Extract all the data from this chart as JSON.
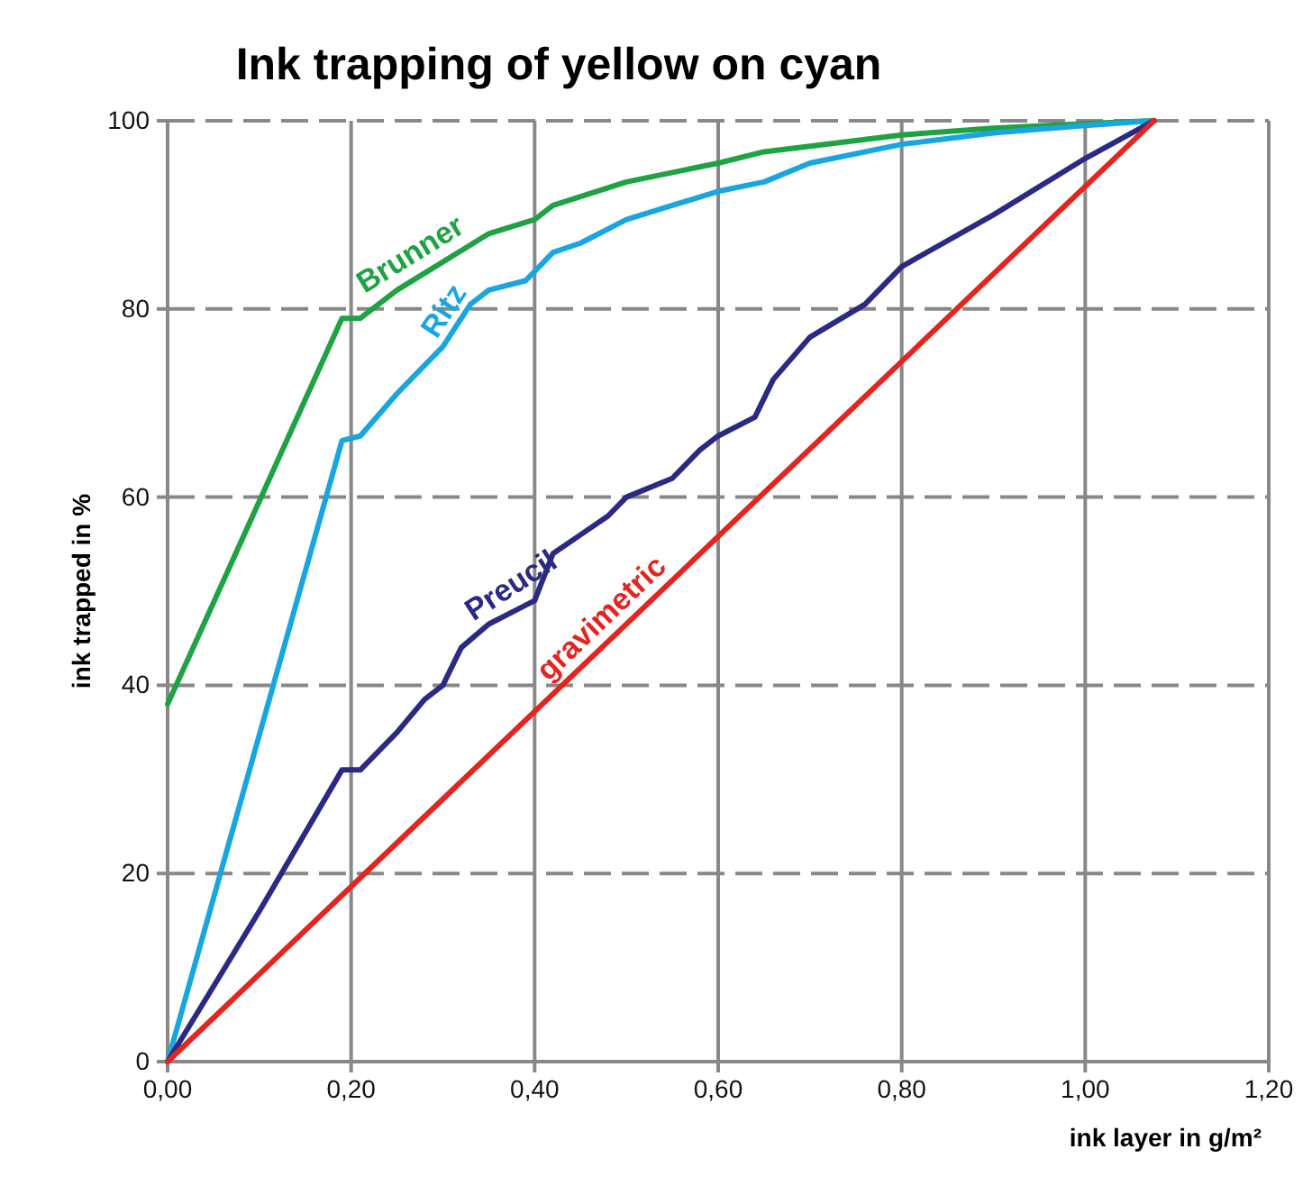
{
  "chart_data": {
    "type": "line",
    "title": "Ink trapping of yellow on cyan",
    "xlabel": "ink layer in g/m²",
    "ylabel": "ink trapped in %",
    "xlim": [
      0,
      1.2
    ],
    "ylim": [
      0,
      100
    ],
    "xticks": [
      {
        "value": 0,
        "label": "0,00"
      },
      {
        "value": 0.2,
        "label": "0,20"
      },
      {
        "value": 0.4,
        "label": "0,40"
      },
      {
        "value": 0.6,
        "label": "0,60"
      },
      {
        "value": 0.8,
        "label": "0,80"
      },
      {
        "value": 1.0,
        "label": "1,00"
      },
      {
        "value": 1.2,
        "label": "1,20"
      }
    ],
    "yticks": [
      0,
      20,
      40,
      60,
      80,
      100
    ],
    "grid": true,
    "legend": false,
    "marker": "none",
    "line_style": "solid",
    "series": [
      {
        "name": "Brunner",
        "color": "#1fa244",
        "x": [
          0,
          0.19,
          0.21,
          0.25,
          0.3,
          0.35,
          0.4,
          0.42,
          0.5,
          0.6,
          0.65,
          0.8,
          0.9,
          1.0,
          1.075
        ],
        "values": [
          38,
          79,
          79,
          82,
          85,
          88,
          89.5,
          91,
          93.5,
          95.5,
          96.7,
          98.5,
          99.2,
          99.7,
          100
        ]
      },
      {
        "name": "Ritz",
        "color": "#19a6e0",
        "x": [
          0,
          0.19,
          0.21,
          0.25,
          0.28,
          0.3,
          0.33,
          0.35,
          0.39,
          0.4,
          0.42,
          0.45,
          0.5,
          0.55,
          0.6,
          0.65,
          0.7,
          0.8,
          0.9,
          1.0,
          1.075
        ],
        "values": [
          0,
          66,
          66.5,
          71,
          74,
          76,
          80.5,
          82,
          83,
          84,
          86,
          87,
          89.5,
          91,
          92.5,
          93.5,
          95.5,
          97.5,
          98.7,
          99.5,
          100
        ]
      },
      {
        "name": "Preucil",
        "color": "#2b2a83",
        "x": [
          0,
          0.1,
          0.19,
          0.21,
          0.25,
          0.28,
          0.3,
          0.32,
          0.35,
          0.38,
          0.4,
          0.42,
          0.45,
          0.48,
          0.5,
          0.55,
          0.58,
          0.6,
          0.64,
          0.66,
          0.7,
          0.76,
          0.8,
          0.9,
          1.0,
          1.075
        ],
        "values": [
          0,
          16,
          31,
          31,
          35,
          38.5,
          40,
          44,
          46.5,
          48,
          49,
          54,
          56,
          58,
          60,
          62,
          65,
          66.5,
          68.5,
          72.5,
          77,
          80.5,
          84.5,
          90,
          96,
          100
        ]
      },
      {
        "name": "gravimetric",
        "color": "#e3241f",
        "x": [
          0,
          1.075
        ],
        "values": [
          0,
          100
        ]
      }
    ]
  }
}
